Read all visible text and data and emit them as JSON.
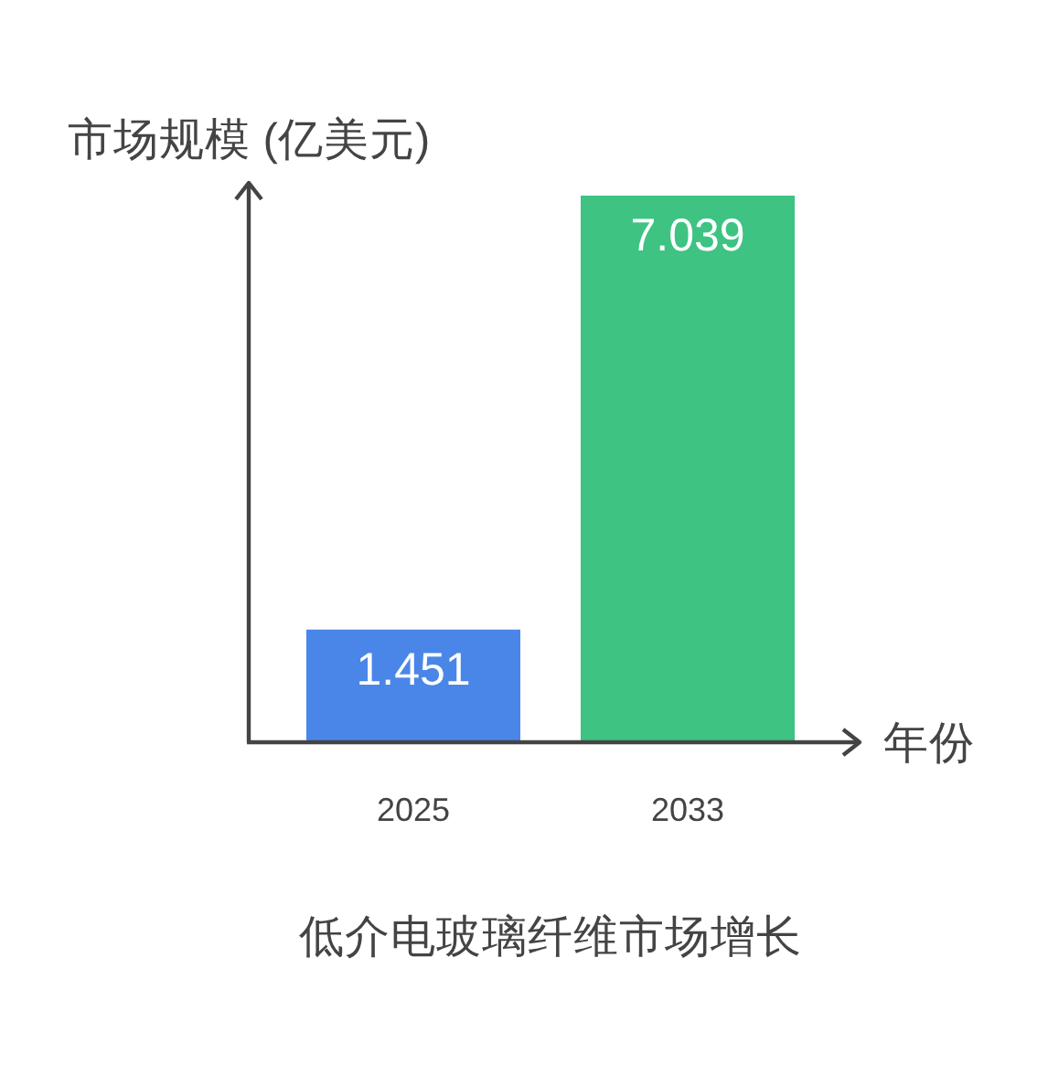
{
  "chart_data": {
    "type": "bar",
    "title": "低介电玻璃纤维市场增长",
    "xlabel": "年份",
    "ylabel": "市场规模 (亿美元)",
    "categories": [
      "2025",
      "2033"
    ],
    "values": [
      1.451,
      7.039
    ],
    "colors": [
      "#4a86e8",
      "#3ec383"
    ],
    "data_labels": true
  }
}
